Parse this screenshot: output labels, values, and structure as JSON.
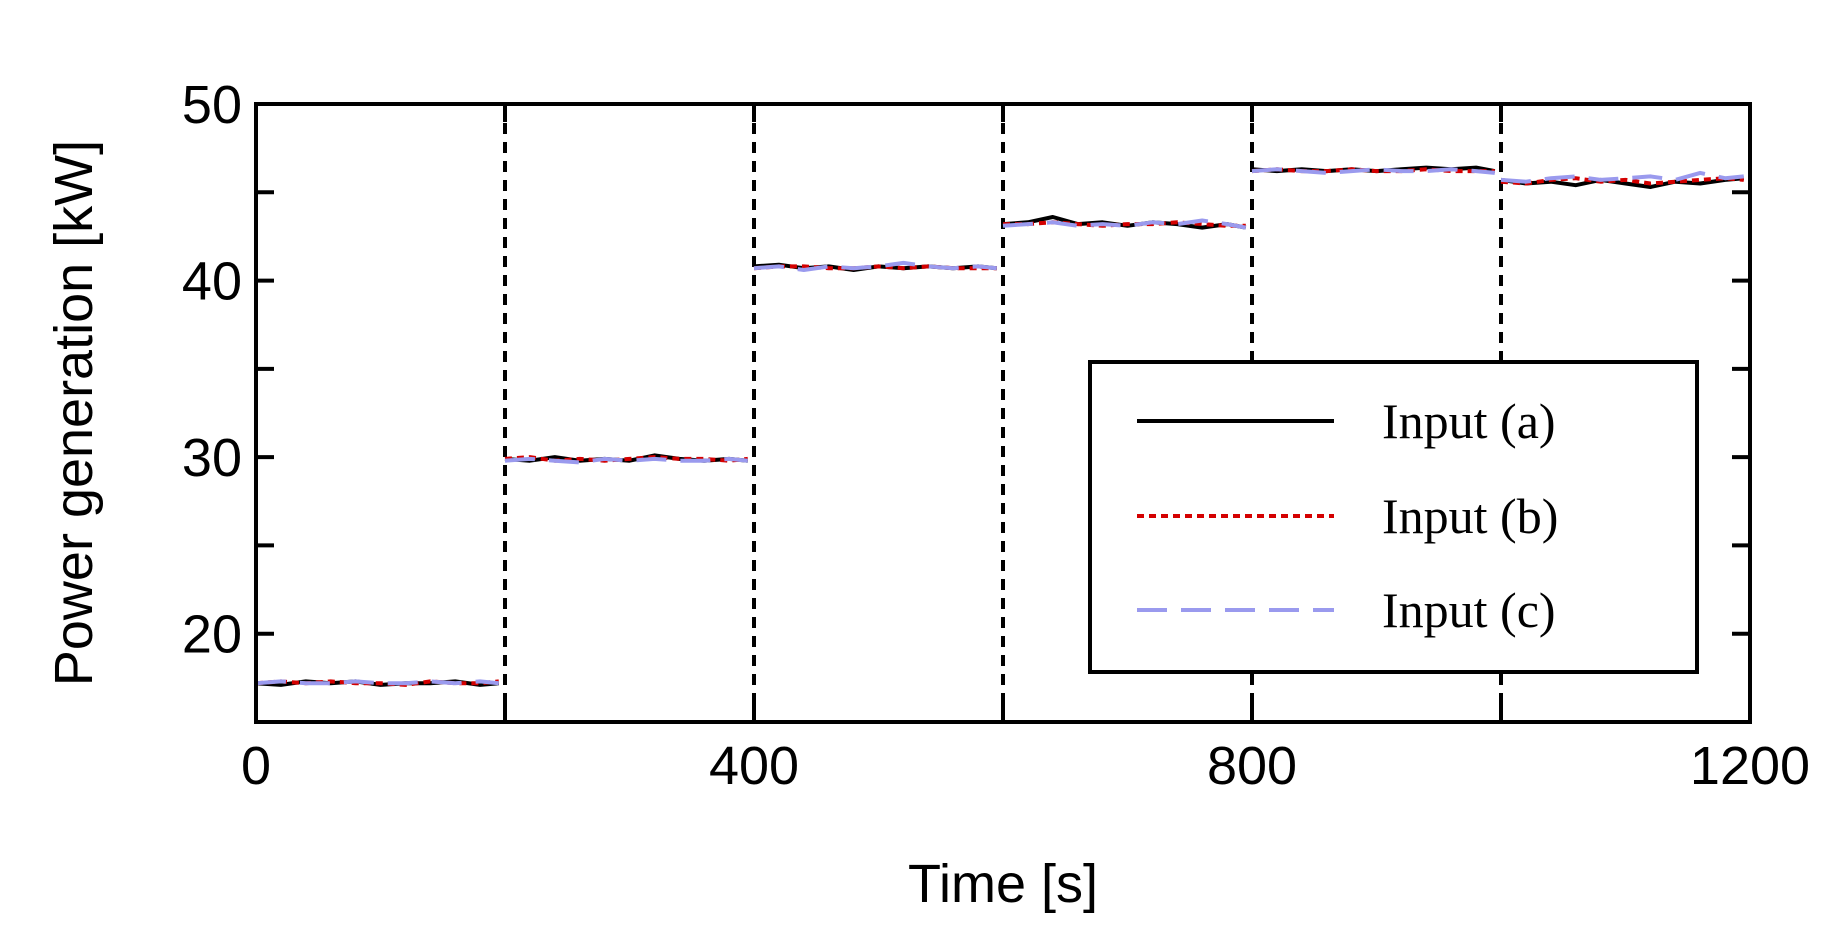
{
  "chart_data": {
    "type": "line",
    "xlabel": "Time [s]",
    "ylabel": "Power generation [kW]",
    "xlim": [
      0,
      1200
    ],
    "ylim": [
      15,
      50
    ],
    "xticks": [
      0,
      400,
      800,
      1200
    ],
    "yticks": [
      20,
      30,
      40,
      50
    ],
    "xtick_labels": [
      "0",
      "400",
      "800",
      "1200"
    ],
    "ytick_labels": [
      "20",
      "30",
      "40",
      "50"
    ],
    "segment_boundaries": [
      200,
      400,
      600,
      800,
      1000
    ],
    "grid": false,
    "legend_position": "bottom-right",
    "series": [
      {
        "name": "Input (a)",
        "color": "#000000",
        "dash": "solid",
        "segments": [
          {
            "x": [
              0,
              20,
              40,
              60,
              80,
              100,
              120,
              140,
              160,
              180,
              195
            ],
            "y": [
              17.2,
              17.1,
              17.3,
              17.2,
              17.3,
              17.1,
              17.2,
              17.2,
              17.3,
              17.1,
              17.2
            ]
          },
          {
            "x": [
              200,
              220,
              240,
              260,
              280,
              300,
              320,
              340,
              360,
              380,
              395
            ],
            "y": [
              29.9,
              29.8,
              30.0,
              29.8,
              29.9,
              29.8,
              30.1,
              29.9,
              29.8,
              29.9,
              29.8
            ]
          },
          {
            "x": [
              400,
              420,
              440,
              460,
              480,
              500,
              520,
              540,
              560,
              580,
              595
            ],
            "y": [
              40.8,
              40.9,
              40.7,
              40.8,
              40.6,
              40.8,
              40.7,
              40.8,
              40.7,
              40.8,
              40.7
            ]
          },
          {
            "x": [
              600,
              620,
              640,
              660,
              680,
              700,
              720,
              740,
              760,
              780,
              795
            ],
            "y": [
              43.2,
              43.3,
              43.6,
              43.2,
              43.3,
              43.1,
              43.3,
              43.2,
              43.0,
              43.2,
              43.0
            ]
          },
          {
            "x": [
              800,
              820,
              840,
              860,
              880,
              900,
              920,
              940,
              960,
              980,
              995
            ],
            "y": [
              46.3,
              46.2,
              46.3,
              46.2,
              46.3,
              46.2,
              46.3,
              46.4,
              46.3,
              46.4,
              46.2
            ]
          },
          {
            "x": [
              1000,
              1020,
              1040,
              1060,
              1080,
              1100,
              1120,
              1140,
              1160,
              1180,
              1195
            ],
            "y": [
              45.7,
              45.5,
              45.6,
              45.4,
              45.7,
              45.5,
              45.3,
              45.6,
              45.5,
              45.7,
              45.8
            ]
          }
        ]
      },
      {
        "name": "Input (b)",
        "color": "#d40000",
        "dash": "dotted",
        "segments": [
          {
            "x": [
              0,
              20,
              40,
              60,
              80,
              100,
              120,
              140,
              160,
              180,
              195
            ],
            "y": [
              17.2,
              17.3,
              17.2,
              17.3,
              17.2,
              17.2,
              17.1,
              17.3,
              17.2,
              17.2,
              17.3
            ]
          },
          {
            "x": [
              200,
              220,
              240,
              260,
              280,
              300,
              320,
              340,
              360,
              380,
              395
            ],
            "y": [
              29.9,
              30.0,
              29.8,
              29.9,
              29.8,
              29.9,
              30.0,
              29.9,
              29.9,
              29.8,
              29.9
            ]
          },
          {
            "x": [
              400,
              420,
              440,
              460,
              480,
              500,
              520,
              540,
              560,
              580,
              595
            ],
            "y": [
              40.7,
              40.8,
              40.8,
              40.7,
              40.7,
              40.8,
              40.7,
              40.8,
              40.7,
              40.7,
              40.7
            ]
          },
          {
            "x": [
              600,
              620,
              640,
              660,
              680,
              700,
              720,
              740,
              760,
              780,
              795
            ],
            "y": [
              43.2,
              43.2,
              43.3,
              43.2,
              43.1,
              43.2,
              43.2,
              43.3,
              43.2,
              43.1,
              43.1
            ]
          },
          {
            "x": [
              800,
              820,
              840,
              860,
              880,
              900,
              920,
              940,
              960,
              980,
              995
            ],
            "y": [
              46.2,
              46.3,
              46.2,
              46.2,
              46.3,
              46.2,
              46.2,
              46.3,
              46.2,
              46.2,
              46.2
            ]
          },
          {
            "x": [
              1000,
              1020,
              1040,
              1060,
              1080,
              1100,
              1120,
              1140,
              1160,
              1180,
              1195
            ],
            "y": [
              45.6,
              45.5,
              45.7,
              45.8,
              45.6,
              45.7,
              45.5,
              45.6,
              45.7,
              45.8,
              45.7
            ]
          }
        ]
      },
      {
        "name": "Input (c)",
        "color": "#9a9aee",
        "dash": "dashed",
        "segments": [
          {
            "x": [
              0,
              20,
              40,
              60,
              80,
              100,
              120,
              140,
              160,
              180,
              195
            ],
            "y": [
              17.2,
              17.3,
              17.2,
              17.2,
              17.3,
              17.2,
              17.2,
              17.3,
              17.2,
              17.3,
              17.2
            ]
          },
          {
            "x": [
              200,
              220,
              240,
              260,
              280,
              300,
              320,
              340,
              360,
              380,
              395
            ],
            "y": [
              29.8,
              29.9,
              29.8,
              29.7,
              29.9,
              29.8,
              29.9,
              29.8,
              29.8,
              29.9,
              29.8
            ]
          },
          {
            "x": [
              400,
              420,
              440,
              460,
              480,
              500,
              520,
              540,
              560,
              580,
              595
            ],
            "y": [
              40.7,
              40.8,
              40.6,
              40.8,
              40.7,
              40.8,
              41.0,
              40.8,
              40.7,
              40.8,
              40.7
            ]
          },
          {
            "x": [
              600,
              620,
              640,
              660,
              680,
              700,
              720,
              740,
              760,
              780,
              795
            ],
            "y": [
              43.1,
              43.2,
              43.3,
              43.1,
              43.2,
              43.1,
              43.3,
              43.2,
              43.4,
              43.2,
              43.0
            ]
          },
          {
            "x": [
              800,
              820,
              840,
              860,
              880,
              900,
              920,
              940,
              960,
              980,
              995
            ],
            "y": [
              46.2,
              46.3,
              46.2,
              46.1,
              46.2,
              46.3,
              46.2,
              46.2,
              46.3,
              46.2,
              46.1
            ]
          },
          {
            "x": [
              1000,
              1020,
              1040,
              1060,
              1080,
              1100,
              1120,
              1140,
              1160,
              1180,
              1195
            ],
            "y": [
              45.7,
              45.6,
              45.8,
              45.9,
              45.7,
              45.8,
              45.9,
              45.7,
              46.1,
              45.8,
              45.9
            ]
          }
        ]
      }
    ]
  }
}
